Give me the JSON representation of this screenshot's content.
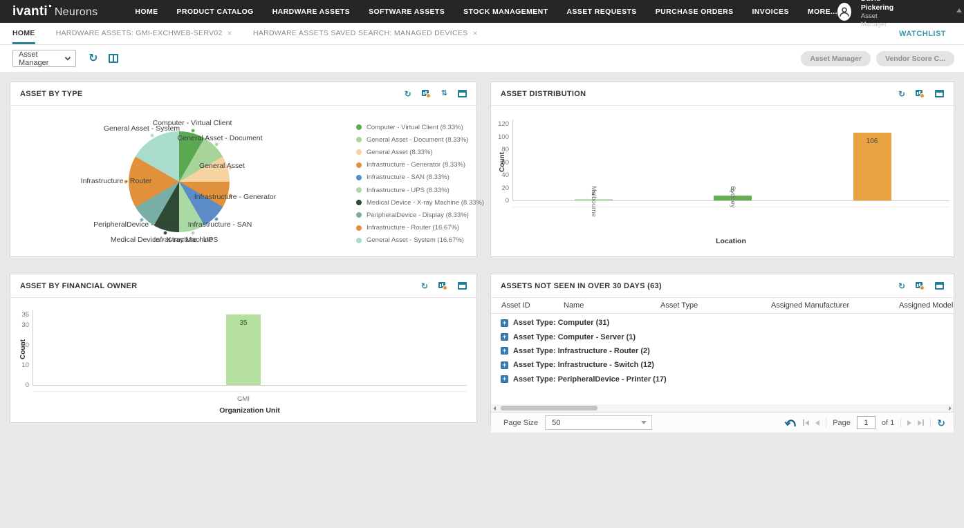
{
  "nav": {
    "brand": {
      "name": "ivanti",
      "product": "Neurons"
    },
    "items": [
      "HOME",
      "PRODUCT CATALOG",
      "HARDWARE ASSETS",
      "SOFTWARE ASSETS",
      "STOCK MANAGEMENT",
      "ASSET REQUESTS",
      "PURCHASE ORDERS",
      "INVOICES",
      "MORE..."
    ],
    "user": {
      "name": "David Pickering",
      "role": "Asset Manager"
    }
  },
  "tabs": {
    "items": [
      {
        "label": "HOME",
        "active": true,
        "closable": false
      },
      {
        "label": "HARDWARE ASSETS: GMI-EXCHWEB-SERV02",
        "active": false,
        "closable": true
      },
      {
        "label": "HARDWARE ASSETS SAVED SEARCH: MANAGED DEVICES",
        "active": false,
        "closable": true
      }
    ],
    "watchlist_label": "WATCHLIST"
  },
  "toolbar": {
    "dashboard_select_value": "Asset Manager",
    "pills": [
      "Asset Manager",
      "Vendor Score C..."
    ]
  },
  "icons": {
    "refresh": "↻",
    "sort": "⇅"
  },
  "colors": {
    "nav_bg": "#262626",
    "accent_teal": "#1f7e99",
    "watchlist": "#3899b2",
    "pager_arrow_blue": "#1b5e8e",
    "dashboard_bg": "#e9e9e9"
  },
  "panels": {
    "asset_by_type": {
      "title": "ASSET BY TYPE"
    },
    "asset_distribution": {
      "title": "ASSET DISTRIBUTION"
    },
    "asset_by_financial_owner": {
      "title": "ASSET BY FINANCIAL OWNER"
    },
    "assets_not_seen": {
      "title": "ASSETS NOT SEEN IN OVER 30 DAYS (63)",
      "columns": [
        "Asset ID",
        "Name",
        "Asset Type",
        "Assigned Manufacturer",
        "Assigned Model"
      ],
      "groups": [
        "Asset Type: Computer (31)",
        "Asset Type: Computer - Server (1)",
        "Asset Type: Infrastructure - Router (2)",
        "Asset Type: Infrastructure - Switch (12)",
        "Asset Type: PeripheralDevice - Printer (17)"
      ],
      "pagination": {
        "page_size_label": "Page Size",
        "page_size": "50",
        "page_label": "Page",
        "page": "1",
        "of_label": "of 1"
      }
    }
  },
  "chart_data": [
    {
      "id": "asset_by_type",
      "type": "pie",
      "title": "Asset by Type",
      "legend_position": "right",
      "slices": [
        {
          "label": "Computer - Virtual Client",
          "pct": 8.33,
          "color": "#5ba852"
        },
        {
          "label": "General Asset - Document",
          "pct": 8.33,
          "color": "#a7d599"
        },
        {
          "label": "General Asset",
          "pct": 8.33,
          "color": "#f8d3a2"
        },
        {
          "label": "Infrastructure - Generator",
          "pct": 8.33,
          "color": "#e0913a"
        },
        {
          "label": "Infrastructure - SAN",
          "pct": 8.33,
          "color": "#5b8cc8"
        },
        {
          "label": "Infrastructure - UPS",
          "pct": 8.33,
          "color": "#aad9a3"
        },
        {
          "label": "Medical Device - X-ray Machine",
          "pct": 8.33,
          "color": "#2f4a33"
        },
        {
          "label": "PeripheralDevice - Display",
          "pct": 8.33,
          "color": "#79aea7"
        },
        {
          "label": "Infrastructure - Router",
          "pct": 16.67,
          "color": "#e0913a"
        },
        {
          "label": "General Asset - System",
          "pct": 16.67,
          "color": "#a9dcca"
        }
      ]
    },
    {
      "id": "asset_distribution",
      "type": "bar",
      "title": "Asset Distribution",
      "categories": [
        "Melbourne",
        "Sydney",
        ""
      ],
      "values": [
        2,
        8,
        106
      ],
      "bar_colors": [
        "#bce2b2",
        "#67ad53",
        "#e8a23f"
      ],
      "xlabel": "Location",
      "ylabel": "Count",
      "yticks": [
        0,
        20,
        40,
        60,
        80,
        100,
        120
      ],
      "ylim": [
        0,
        120
      ],
      "grid": false,
      "value_labels": true
    },
    {
      "id": "asset_by_financial_owner",
      "type": "bar",
      "title": "Asset by Financial Owner",
      "categories": [
        "GMI"
      ],
      "values": [
        35
      ],
      "bar_colors": [
        "#b6e09f"
      ],
      "xlabel": "Organization Unit",
      "ylabel": "Count",
      "yticks": [
        0,
        10,
        20,
        30,
        35
      ],
      "ylim": [
        0,
        35
      ],
      "grid": false,
      "value_labels": true
    }
  ]
}
